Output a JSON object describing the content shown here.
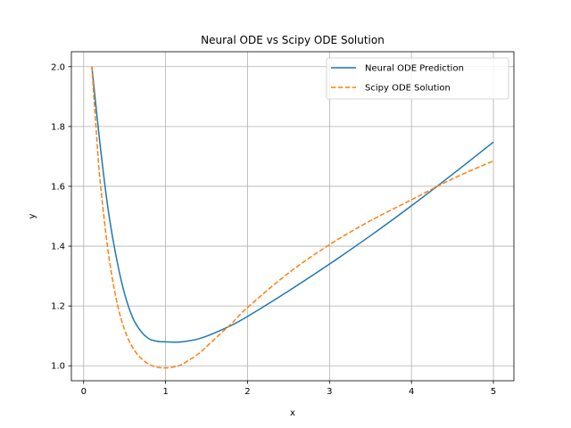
{
  "chart_data": {
    "type": "line",
    "title": "Neural ODE vs Scipy ODE Solution",
    "xlabel": "x",
    "ylabel": "y",
    "xlim": [
      -0.15,
      5.25
    ],
    "ylim": [
      0.95,
      2.05
    ],
    "xticks": [
      0,
      1,
      2,
      3,
      4,
      5
    ],
    "yticks": [
      1.0,
      1.2,
      1.4,
      1.6,
      1.8,
      2.0
    ],
    "ytick_labels": [
      "1.0",
      "1.2",
      "1.4",
      "1.6",
      "1.8",
      "2.0"
    ],
    "grid": true,
    "legend_position": "top-right",
    "series": [
      {
        "name": "Neural ODE Prediction",
        "color": "#1f77b4",
        "style": "solid",
        "x": [
          0.1,
          0.2,
          0.3,
          0.4,
          0.5,
          0.6,
          0.7,
          0.8,
          0.9,
          1.0,
          1.1,
          1.2,
          1.4,
          1.6,
          1.8,
          2.0,
          2.5,
          3.0,
          3.5,
          4.0,
          4.5,
          5.0
        ],
        "y": [
          2.0,
          1.74,
          1.52,
          1.36,
          1.24,
          1.16,
          1.115,
          1.09,
          1.082,
          1.08,
          1.079,
          1.08,
          1.09,
          1.11,
          1.135,
          1.165,
          1.25,
          1.34,
          1.435,
          1.535,
          1.64,
          1.748
        ]
      },
      {
        "name": "Scipy ODE Solution",
        "color": "#ff7f0e",
        "style": "dashed",
        "x": [
          0.1,
          0.15,
          0.2,
          0.3,
          0.4,
          0.5,
          0.6,
          0.7,
          0.8,
          0.9,
          1.0,
          1.1,
          1.2,
          1.4,
          1.6,
          1.8,
          2.0,
          2.5,
          3.0,
          3.5,
          4.0,
          4.5,
          5.0
        ],
        "y": [
          2.0,
          1.8,
          1.62,
          1.38,
          1.22,
          1.12,
          1.06,
          1.025,
          1.005,
          0.995,
          0.993,
          0.996,
          1.005,
          1.04,
          1.09,
          1.14,
          1.195,
          1.31,
          1.405,
          1.485,
          1.555,
          1.625,
          1.685
        ]
      }
    ]
  }
}
